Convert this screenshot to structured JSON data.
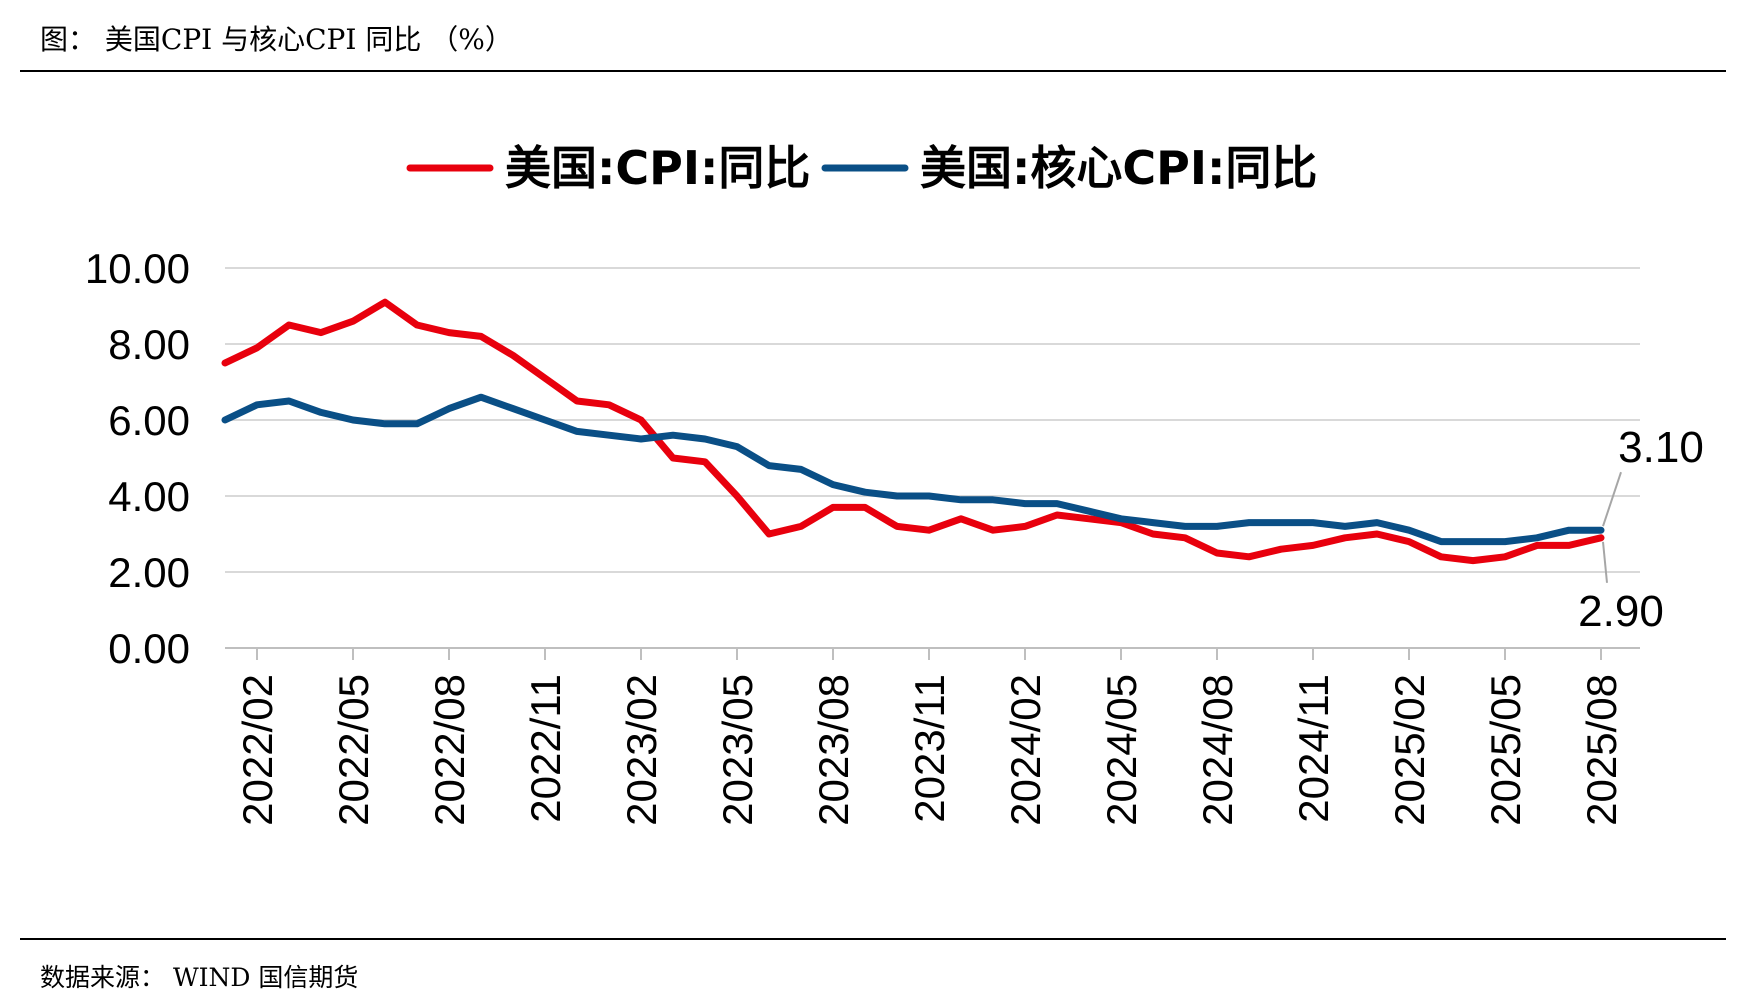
{
  "figure": {
    "title": "图： 美国CPI 与核心CPI 同比 （%）",
    "source": "数据来源： WIND 国信期货"
  },
  "chart_data": {
    "type": "line",
    "title": "",
    "xlabel": "",
    "ylabel": "",
    "ylim": [
      0,
      10
    ],
    "y_ticks": [
      "0.00",
      "2.00",
      "4.00",
      "6.00",
      "8.00",
      "10.00"
    ],
    "grid": true,
    "legend_position": "top",
    "x_tick_labels": [
      "2022/02",
      "2022/05",
      "2022/08",
      "2022/11",
      "2023/02",
      "2023/05",
      "2023/08",
      "2023/11",
      "2024/02",
      "2024/05",
      "2024/08",
      "2024/11",
      "2025/02",
      "2025/05",
      "2025/08"
    ],
    "x": [
      "2022/01",
      "2022/02",
      "2022/03",
      "2022/04",
      "2022/05",
      "2022/06",
      "2022/07",
      "2022/08",
      "2022/09",
      "2022/10",
      "2022/11",
      "2022/12",
      "2023/01",
      "2023/02",
      "2023/03",
      "2023/04",
      "2023/05",
      "2023/06",
      "2023/07",
      "2023/08",
      "2023/09",
      "2023/10",
      "2023/11",
      "2023/12",
      "2024/01",
      "2024/02",
      "2024/03",
      "2024/04",
      "2024/05",
      "2024/06",
      "2024/07",
      "2024/08",
      "2024/09",
      "2024/10",
      "2024/11",
      "2024/12",
      "2025/01",
      "2025/02",
      "2025/03",
      "2025/04",
      "2025/05",
      "2025/06",
      "2025/07",
      "2025/08"
    ],
    "series": [
      {
        "name": "美国:CPI:同比",
        "color": "#e8000d",
        "values": [
          7.5,
          7.9,
          8.5,
          8.3,
          8.6,
          9.1,
          8.5,
          8.3,
          8.2,
          7.7,
          7.1,
          6.5,
          6.4,
          6.0,
          5.0,
          4.9,
          4.0,
          3.0,
          3.2,
          3.7,
          3.7,
          3.2,
          3.1,
          3.4,
          3.1,
          3.2,
          3.5,
          3.4,
          3.3,
          3.0,
          2.9,
          2.5,
          2.4,
          2.6,
          2.7,
          2.9,
          3.0,
          2.8,
          2.4,
          2.3,
          2.4,
          2.7,
          2.7,
          2.9
        ]
      },
      {
        "name": "美国:核心CPI:同比",
        "color": "#0a4f86",
        "values": [
          6.0,
          6.4,
          6.5,
          6.2,
          6.0,
          5.9,
          5.9,
          6.3,
          6.6,
          6.3,
          6.0,
          5.7,
          5.6,
          5.5,
          5.6,
          5.5,
          5.3,
          4.8,
          4.7,
          4.3,
          4.1,
          4.0,
          4.0,
          3.9,
          3.9,
          3.8,
          3.8,
          3.6,
          3.4,
          3.3,
          3.2,
          3.2,
          3.3,
          3.3,
          3.3,
          3.2,
          3.3,
          3.1,
          2.8,
          2.8,
          2.8,
          2.9,
          3.1,
          3.1
        ]
      }
    ],
    "annotations": [
      {
        "text": "3.10",
        "series": "美国:核心CPI:同比",
        "x": "2025/08",
        "value": 3.1
      },
      {
        "text": "2.90",
        "series": "美国:CPI:同比",
        "x": "2025/08",
        "value": 2.9
      }
    ]
  }
}
